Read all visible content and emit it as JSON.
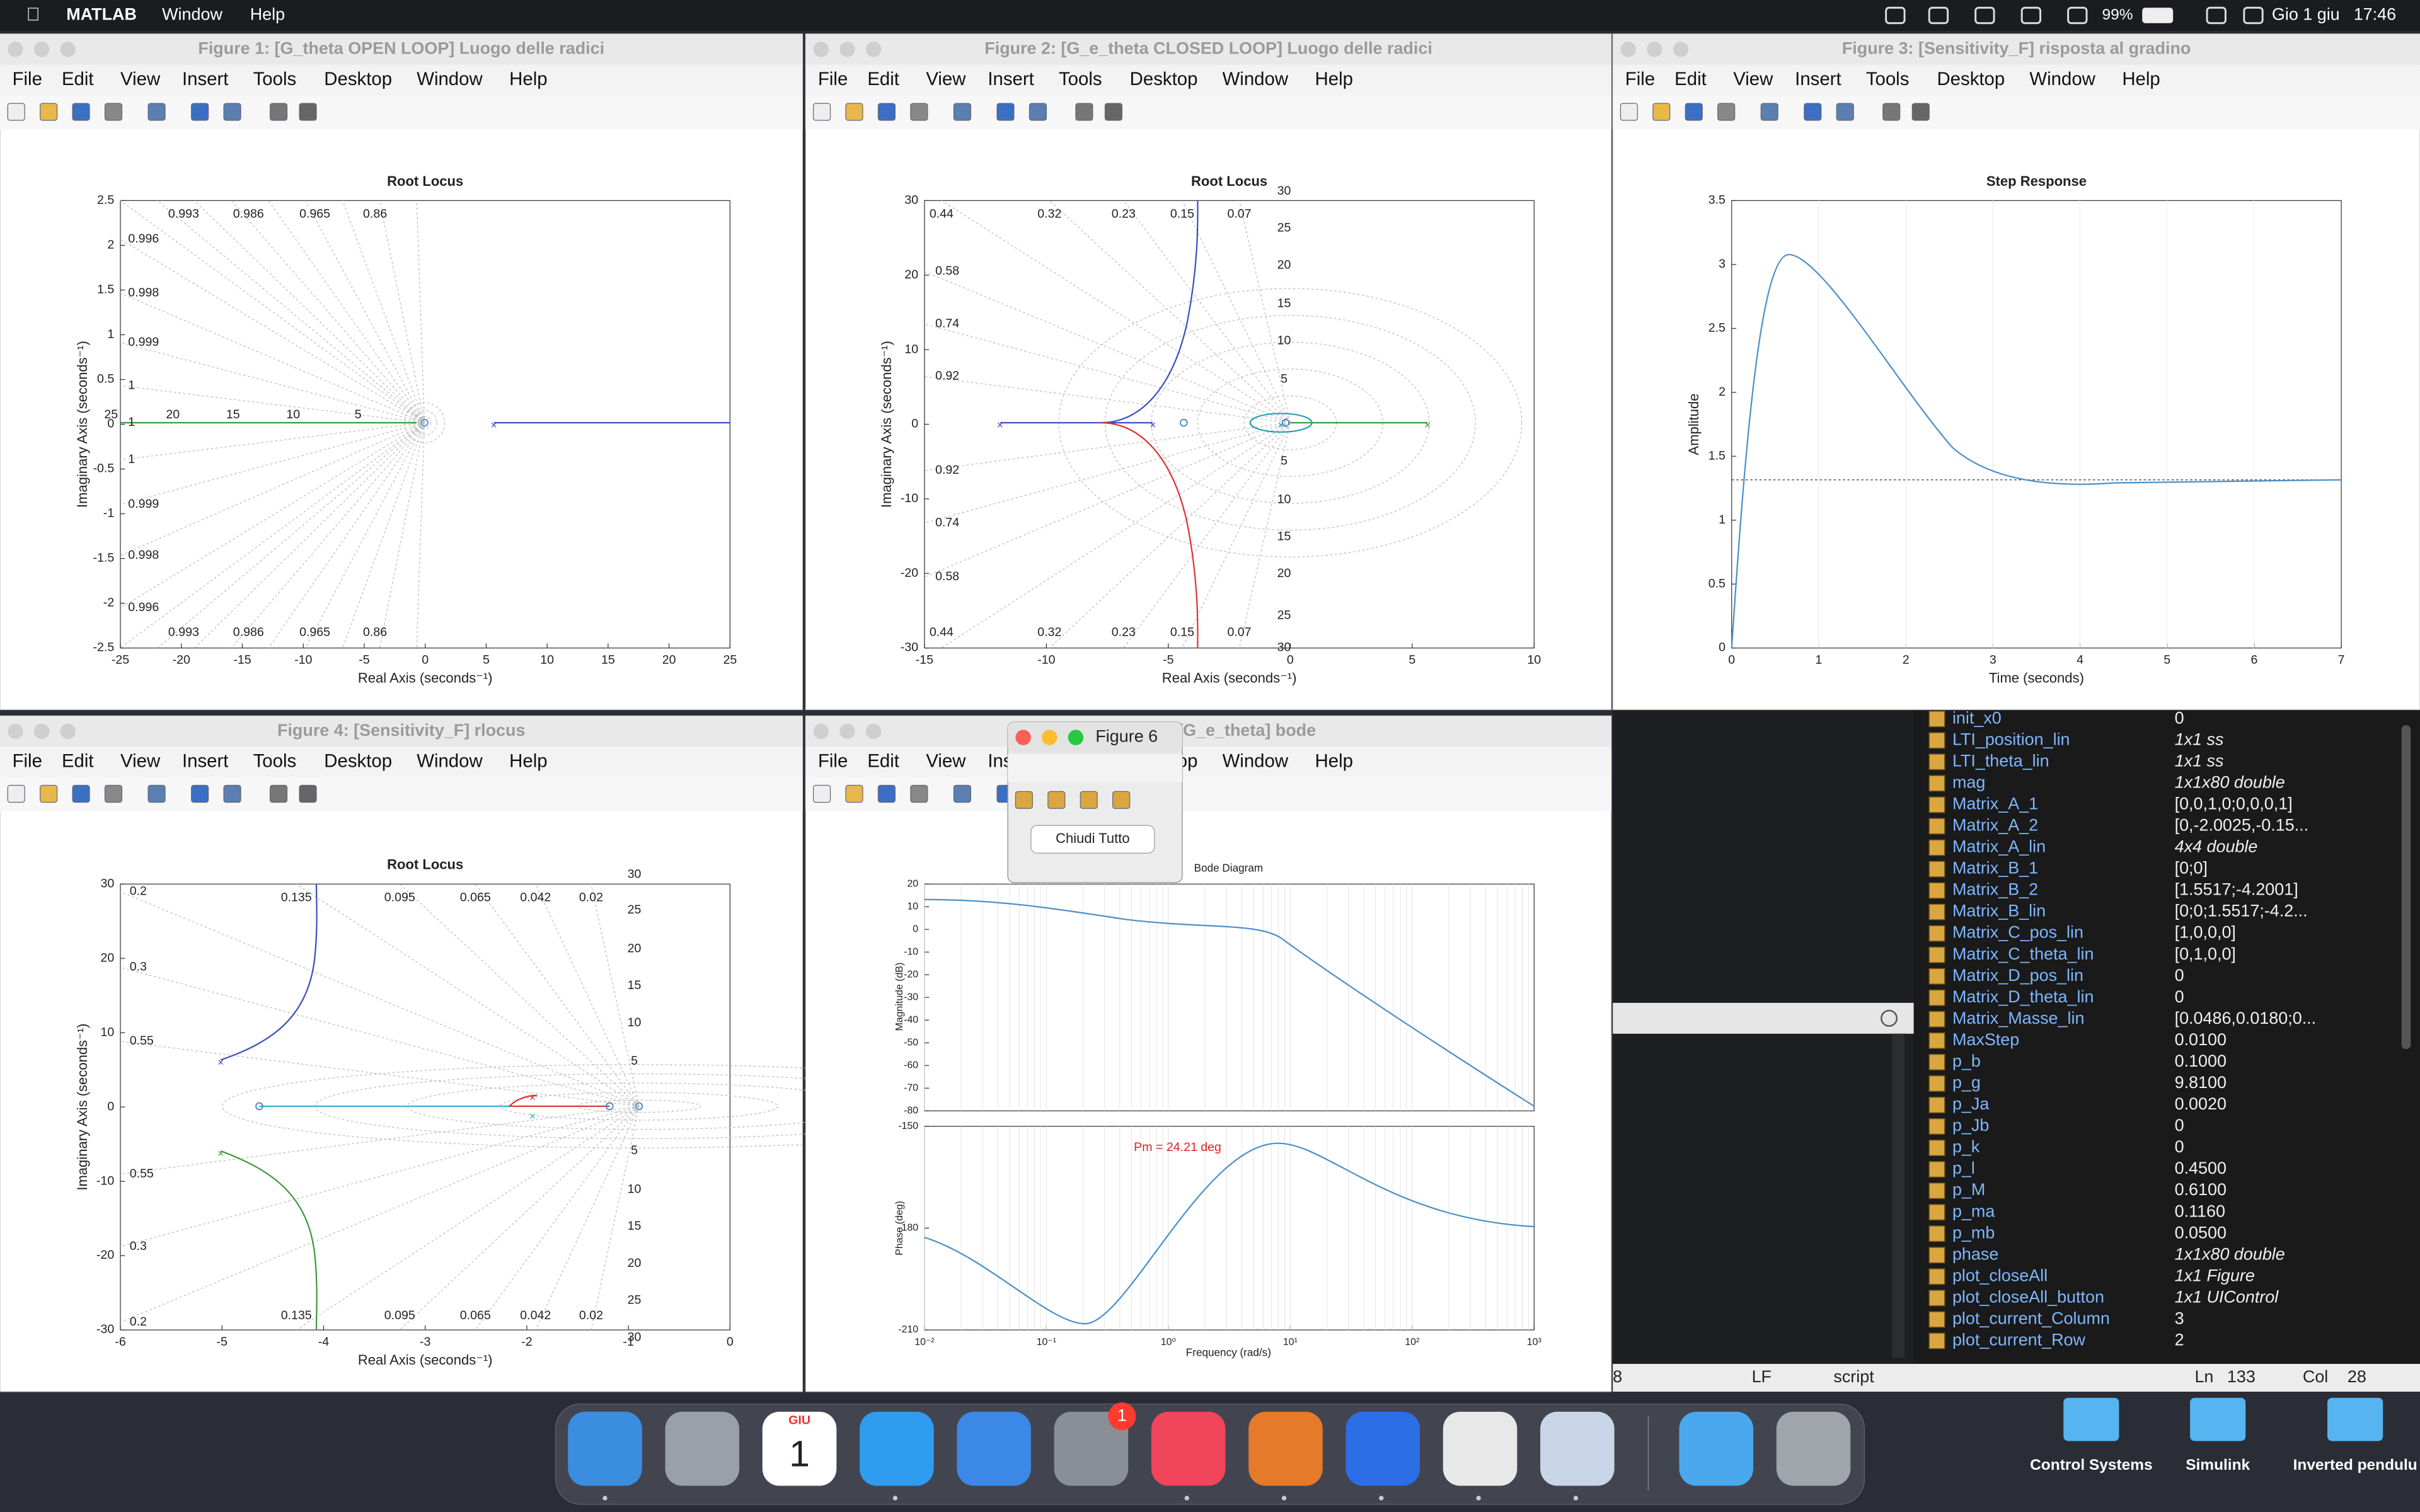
{
  "menubar": {
    "app": "MATLAB",
    "menus": [
      "Window",
      "Help"
    ],
    "battery": "99%",
    "date": "Gio 1 giu",
    "time": "17:46"
  },
  "figure_menu": [
    "File",
    "Edit",
    "View",
    "Insert",
    "Tools",
    "Desktop",
    "Window",
    "Help"
  ],
  "windows": [
    {
      "title": "Figure 1:  [G_theta OPEN LOOP] Luogo delle radici",
      "plot": {
        "title": "Root Locus",
        "xlabel": "Real Axis (seconds⁻¹)",
        "ylabel": "Imaginary Axis (seconds⁻¹)",
        "xticks": [
          -25,
          -20,
          -15,
          -10,
          -5,
          0,
          5,
          10,
          15,
          20,
          25
        ],
        "yticks": [
          -2.5,
          -2,
          -1.5,
          -1,
          -0.5,
          0,
          0.5,
          1,
          1.5,
          2,
          2.5
        ],
        "top_labels": [
          "0.993",
          "0.986",
          "0.965",
          "0.86"
        ],
        "bottom_labels": [
          "0.993",
          "0.986",
          "0.965",
          "0.86"
        ],
        "left_labels": [
          "0.996",
          "0.998",
          "0.999",
          "1",
          "1",
          "1",
          "0.999",
          "0.998",
          "0.996"
        ],
        "freq_labels": [
          "25",
          "20",
          "15",
          "10",
          "5"
        ]
      }
    },
    {
      "title": "Figure 2:  [G_e_theta CLOSED LOOP] Luogo delle radici",
      "plot": {
        "title": "Root Locus",
        "xlabel": "Real Axis (seconds⁻¹)",
        "ylabel": "Imaginary Axis (seconds⁻¹)",
        "xticks": [
          -15,
          -10,
          -5,
          0,
          5,
          10
        ],
        "yticks": [
          -30,
          -20,
          -10,
          0,
          10,
          20,
          30
        ],
        "top_labels": [
          "0.44",
          "0.32",
          "0.23",
          "0.15",
          "0.07"
        ],
        "bottom_labels": [
          "0.44",
          "0.32",
          "0.23",
          "0.15",
          "0.07"
        ],
        "left_labels": [
          "0.58",
          "0.74",
          "0.92",
          "0.92",
          "0.74",
          "0.58"
        ],
        "freq_labels": [
          "30",
          "25",
          "20",
          "15",
          "10",
          "5",
          "5",
          "10",
          "15",
          "20",
          "25",
          "30"
        ]
      }
    },
    {
      "title": "Figure 3:  [Sensitivity_F] risposta al gradino",
      "plot": {
        "title": "Step Response",
        "xlabel": "Time (seconds)",
        "ylabel": "Amplitude",
        "xticks": [
          0,
          1,
          2,
          3,
          4,
          5,
          6,
          7
        ],
        "yticks": [
          0,
          0.5,
          1,
          1.5,
          2,
          2.5,
          3,
          3.5
        ]
      }
    },
    {
      "title": "Figure 4:  [Sensitivity_F] rlocus",
      "plot": {
        "title": "Root Locus",
        "xlabel": "Real Axis (seconds⁻¹)",
        "ylabel": "Imaginary Axis (seconds⁻¹)",
        "xticks": [
          -6,
          -5,
          -4,
          -3,
          -2,
          -1,
          0
        ],
        "yticks": [
          -30,
          -20,
          -10,
          0,
          10,
          20,
          30
        ],
        "top_labels": [
          "0.135",
          "0.095",
          "0.065",
          "0.042",
          "0.02"
        ],
        "bottom_labels": [
          "0.135",
          "0.095",
          "0.065",
          "0.042",
          "0.02"
        ],
        "left_labels": [
          "0.2",
          "0.3",
          "0.55",
          "0.55",
          "0.3",
          "0.2"
        ],
        "freq_labels": [
          "30",
          "25",
          "20",
          "15",
          "10",
          "5",
          "5",
          "10",
          "15",
          "20",
          "25",
          "30"
        ]
      }
    },
    {
      "title": "Figure 5:  [G_e_theta] bode",
      "plot": {
        "title": "Bode Diagram",
        "xlabel": "Frequency  (rad/s)",
        "ylabel_mag": "Magnitude (dB)",
        "ylabel_phase": "Phase (deg)",
        "xticks": [
          "10⁻²",
          "10⁻¹",
          "10⁰",
          "10¹",
          "10²",
          "10³"
        ],
        "yticks_mag": [
          -80,
          -70,
          -60,
          -50,
          -40,
          -30,
          -20,
          -10,
          0,
          10,
          20
        ],
        "yticks_phase": [
          -210,
          -180,
          -150
        ],
        "annotation": "Pm = 24.21 deg"
      }
    },
    {
      "title": "Figure 6",
      "button": "Chiudi Tutto"
    }
  ],
  "workspace": [
    [
      "init_x0",
      "0"
    ],
    [
      "LTI_position_lin",
      "1x1 ss"
    ],
    [
      "LTI_theta_lin",
      "1x1 ss"
    ],
    [
      "mag",
      "1x1x80 double"
    ],
    [
      "Matrix_A_1",
      "[0,0,1,0;0,0,0,1]"
    ],
    [
      "Matrix_A_2",
      "[0,-2.0025,-0.15..."
    ],
    [
      "Matrix_A_lin",
      "4x4 double"
    ],
    [
      "Matrix_B_1",
      "[0;0]"
    ],
    [
      "Matrix_B_2",
      "[1.5517;-4.2001]"
    ],
    [
      "Matrix_B_lin",
      "[0;0;1.5517;-4.2..."
    ],
    [
      "Matrix_C_pos_lin",
      "[1,0,0,0]"
    ],
    [
      "Matrix_C_theta_lin",
      "[0,1,0,0]"
    ],
    [
      "Matrix_D_pos_lin",
      "0"
    ],
    [
      "Matrix_D_theta_lin",
      "0"
    ],
    [
      "Matrix_Masse_lin",
      "[0.0486,0.0180;0..."
    ],
    [
      "MaxStep",
      "0.0100"
    ],
    [
      "p_b",
      "0.1000"
    ],
    [
      "p_g",
      "9.8100"
    ],
    [
      "p_Ja",
      "0.0020"
    ],
    [
      "p_Jb",
      "0"
    ],
    [
      "p_k",
      "0"
    ],
    [
      "p_l",
      "0.4500"
    ],
    [
      "p_M",
      "0.6100"
    ],
    [
      "p_ma",
      "0.1160"
    ],
    [
      "p_mb",
      "0.0500"
    ],
    [
      "phase",
      "1x1x80 double"
    ],
    [
      "plot_closeAll",
      "1x1 Figure"
    ],
    [
      "plot_closeAll_button",
      "1x1 UIControl"
    ],
    [
      "plot_current_Column",
      "3"
    ],
    [
      "plot_current_Row",
      "2"
    ]
  ],
  "statusbar": {
    "left": "8",
    "eol": "LF",
    "mode": "script",
    "ln_label": "Ln",
    "ln": "133",
    "col_label": "Col",
    "col": "28"
  },
  "dock": {
    "calendar_month": "GIU",
    "calendar_day": "1",
    "badge": "1"
  },
  "desktop_icons": [
    "Control Systems",
    "Simulink",
    "Inverted pendulu"
  ]
}
